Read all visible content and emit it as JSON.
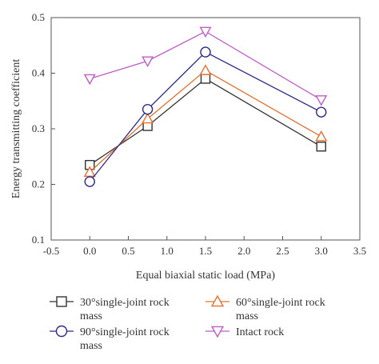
{
  "chart_data": {
    "type": "line",
    "xlabel": "Equal biaxial static load (MPa)",
    "ylabel": "Energy transmitting coefficient",
    "xlim": [
      -0.5,
      3.5
    ],
    "ylim": [
      0.1,
      0.5
    ],
    "xticks": [
      "-0.5",
      "0.0",
      "0.5",
      "1.0",
      "1.5",
      "2.0",
      "2.5",
      "3.0",
      "3.5"
    ],
    "yticks": [
      "0.1",
      "0.2",
      "0.3",
      "0.4",
      "0.5"
    ],
    "grid": false,
    "legend_position": "bottom",
    "x": [
      0.0,
      0.75,
      1.5,
      3.0
    ],
    "series": [
      {
        "name": "30°single-joint rock mass",
        "legend_lines": [
          "30°single-joint rock",
          "mass"
        ],
        "values": [
          0.235,
          0.305,
          0.39,
          0.268
        ],
        "color": "#333333",
        "marker": "square"
      },
      {
        "name": "60°single-joint rock mass",
        "legend_lines": [
          "60°single-joint rock",
          "mass"
        ],
        "values": [
          0.222,
          0.318,
          0.405,
          0.286
        ],
        "color": "#e4702e",
        "marker": "triangle-up"
      },
      {
        "name": "90°single-joint rock mass",
        "legend_lines": [
          "90°single-joint rock",
          "mass"
        ],
        "values": [
          0.205,
          0.335,
          0.438,
          0.33
        ],
        "color": "#2a2a8a",
        "marker": "circle"
      },
      {
        "name": "Intact rock",
        "legend_lines": [
          "Intact rock"
        ],
        "values": [
          0.39,
          0.422,
          0.475,
          0.352
        ],
        "color": "#c05cc8",
        "marker": "triangle-down"
      }
    ]
  }
}
